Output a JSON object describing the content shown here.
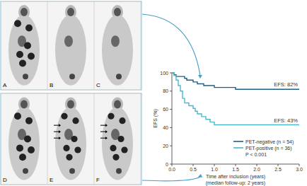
{
  "images": {
    "panels": [
      "A",
      "B",
      "C",
      "D",
      "E",
      "F"
    ]
  },
  "chart_data": {
    "type": "line",
    "line_style": "step",
    "x_label": "Time after inclusion (years)",
    "x_sublabel": "(median follow-up: 2 years)",
    "y_label": "EFS (%)",
    "xlim": [
      0,
      3
    ],
    "xticks": [
      {
        "value": 0,
        "label": "0.0"
      },
      {
        "value": 0.5,
        "label": "0.5"
      },
      {
        "value": 1,
        "label": "1.0"
      },
      {
        "value": 1.5,
        "label": "1.5"
      },
      {
        "value": 2,
        "label": "2.0"
      },
      {
        "value": 2.5,
        "label": "2.5"
      },
      {
        "value": 3,
        "label": "3.0"
      }
    ],
    "ylim": [
      0,
      100
    ],
    "yticks": [
      0,
      20,
      40,
      60,
      80,
      100
    ],
    "grid": false,
    "legend": "lower right",
    "series": [
      {
        "name": "PET-negative (n = 54)",
        "color": "#1f5f86",
        "x": [
          0,
          0.05,
          0.1,
          0.3,
          0.35,
          0.5,
          0.6,
          0.75,
          1.0,
          1.5,
          3.0
        ],
        "values": [
          100,
          98,
          96,
          94,
          92,
          90,
          88,
          86,
          84,
          82,
          82
        ]
      },
      {
        "name": "PET-positive (n = 36)",
        "color": "#4db8cc",
        "x": [
          0,
          0.05,
          0.1,
          0.15,
          0.2,
          0.25,
          0.3,
          0.4,
          0.5,
          0.55,
          0.6,
          0.7,
          0.8,
          0.9,
          1.0,
          3.0
        ],
        "values": [
          100,
          97,
          92,
          86,
          80,
          72,
          67,
          64,
          61,
          58,
          55,
          52,
          49,
          46,
          43,
          43
        ]
      }
    ],
    "annotations": [
      "EFS: 82%",
      "EFS: 43%"
    ],
    "p_value": "P < 0.001"
  }
}
